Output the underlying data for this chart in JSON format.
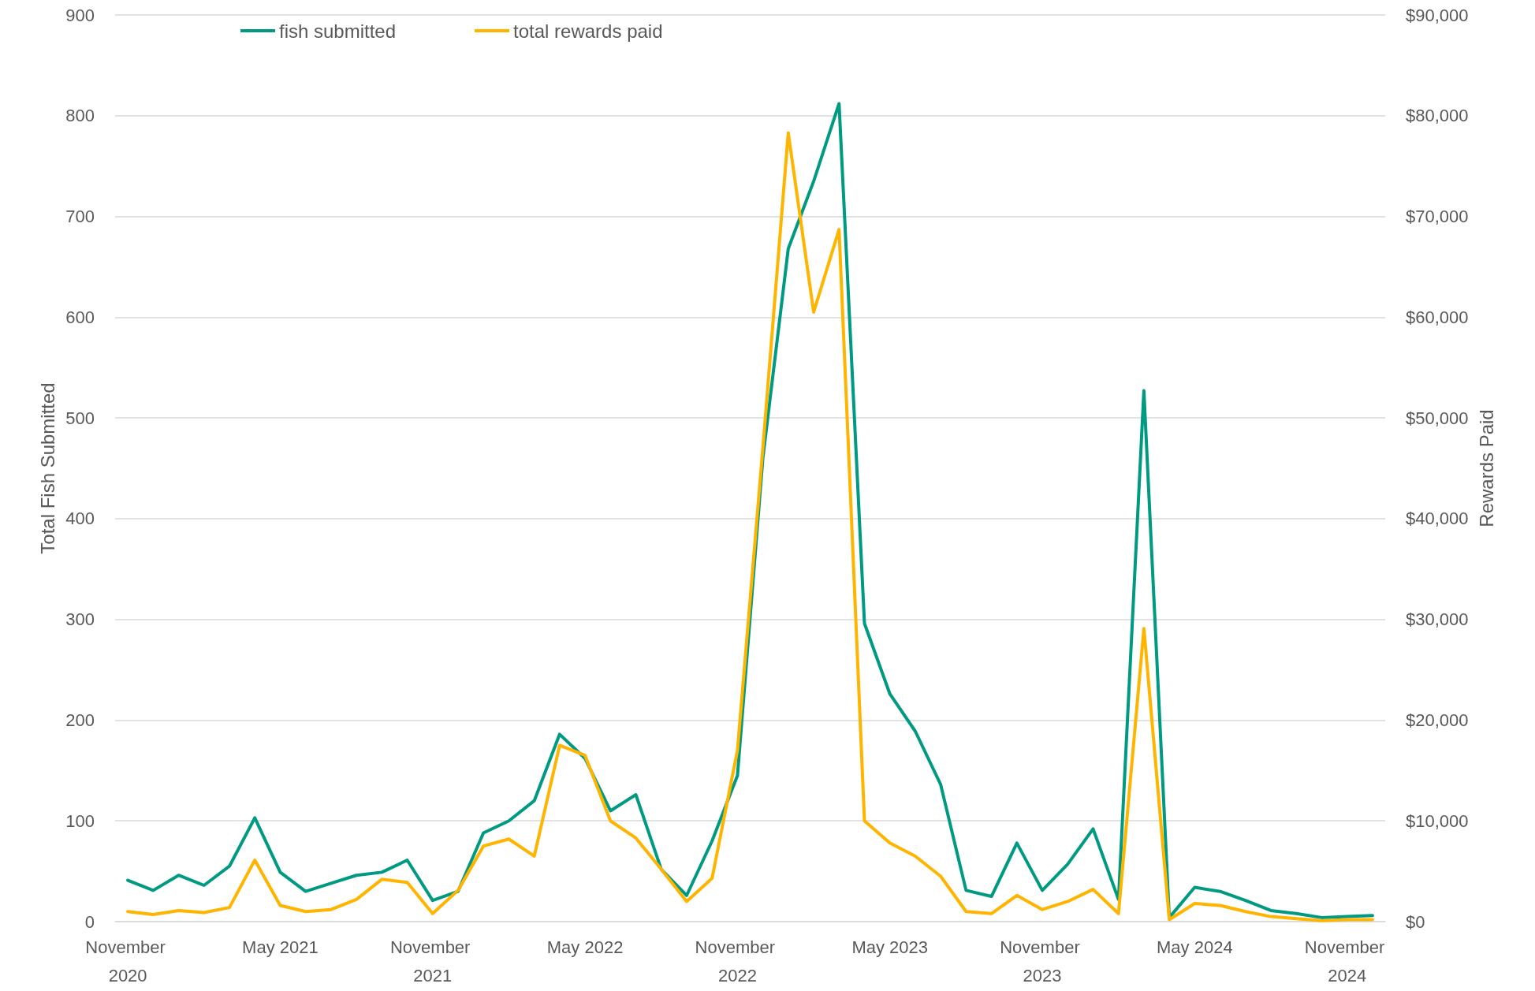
{
  "chart_data": {
    "type": "line",
    "ylabel": "Total Fish Submitted",
    "y2label": "Rewards Paid",
    "categories": [
      "November 2020",
      null,
      null,
      null,
      null,
      null,
      "May 2021",
      null,
      null,
      null,
      null,
      null,
      "November 2021",
      null,
      null,
      null,
      null,
      null,
      "May 2022",
      null,
      null,
      null,
      null,
      null,
      "November 2022",
      null,
      null,
      null,
      null,
      null,
      "May 2023",
      null,
      null,
      null,
      null,
      null,
      "November 2023",
      null,
      null,
      null,
      null,
      null,
      "May 2024",
      null,
      null,
      null,
      null,
      null,
      "November 2024",
      null
    ],
    "series": [
      {
        "name": "fish submitted",
        "color": "#009a82",
        "values": [
          41,
          31,
          46,
          36,
          55,
          103,
          49,
          30,
          38,
          46,
          49,
          61,
          21,
          30,
          88,
          100,
          120,
          186,
          162,
          110,
          126,
          52,
          26,
          80,
          145,
          460,
          668,
          735,
          812,
          296,
          226,
          189,
          136,
          31,
          25,
          78,
          31,
          57,
          92,
          22,
          527,
          4,
          34,
          30,
          21,
          11,
          8,
          4,
          5,
          6
        ]
      },
      {
        "name": "total rewards paid",
        "color": "#ffb400",
        "axis": "y2",
        "values": [
          1000,
          700,
          1100,
          900,
          1400,
          6100,
          1600,
          1000,
          1200,
          2200,
          4200,
          3900,
          800,
          3100,
          7500,
          8200,
          6500,
          17500,
          16500,
          10000,
          8300,
          5200,
          2000,
          4300,
          17000,
          47000,
          78300,
          60500,
          68700,
          10000,
          7800,
          6500,
          4500,
          1000,
          800,
          2600,
          1200,
          2000,
          3200,
          800,
          29100,
          200,
          1800,
          1600,
          1000,
          500,
          300,
          100,
          200,
          200
        ]
      }
    ],
    "ylim": [
      0,
      900
    ],
    "yticks": [
      0,
      100,
      200,
      300,
      400,
      500,
      600,
      700,
      800,
      900
    ],
    "y2lim": [
      0,
      90000
    ],
    "y2ticks": [
      {
        "value": 0,
        "label": "$0"
      },
      {
        "value": 10000,
        "label": "$10,000"
      },
      {
        "value": 20000,
        "label": "$20,000"
      },
      {
        "value": 30000,
        "label": "$30,000"
      },
      {
        "value": 40000,
        "label": "$40,000"
      },
      {
        "value": 50000,
        "label": "$50,000"
      },
      {
        "value": 60000,
        "label": "$60,000"
      },
      {
        "value": 70000,
        "label": "$70,000"
      },
      {
        "value": 80000,
        "label": "$80,000"
      },
      {
        "value": 90000,
        "label": "$90,000"
      }
    ],
    "grid": "y",
    "legend": "top left",
    "marker": "none",
    "line_style": "solid"
  }
}
